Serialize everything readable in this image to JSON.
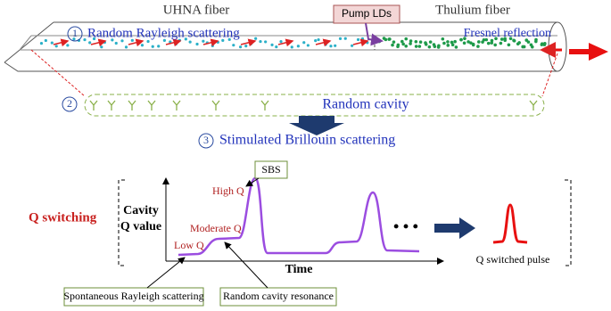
{
  "fiber": {
    "left_label": "UHNA fiber",
    "right_label": "Thulium fiber",
    "pump": "Pump LDs",
    "reflection": "Fresnel reflection"
  },
  "steps": [
    {
      "number": "1",
      "label": "Random Rayleigh scattering"
    },
    {
      "number": "2",
      "label": "Random cavity"
    },
    {
      "number": "3",
      "label": "Stimulated Brillouin scattering"
    }
  ],
  "q_switching": {
    "title": "Q switching",
    "y_label": [
      "Cavity",
      "Q value"
    ],
    "x_label": "Time",
    "levels": {
      "low": "Low Q",
      "moderate": "Moderate Q",
      "high": "High Q"
    },
    "peak": "SBS",
    "more": "• • •",
    "pulse_label": "Q switched pulse",
    "callouts": [
      "Spontaneous Rayleigh scattering",
      "Random cavity resonance"
    ]
  }
}
